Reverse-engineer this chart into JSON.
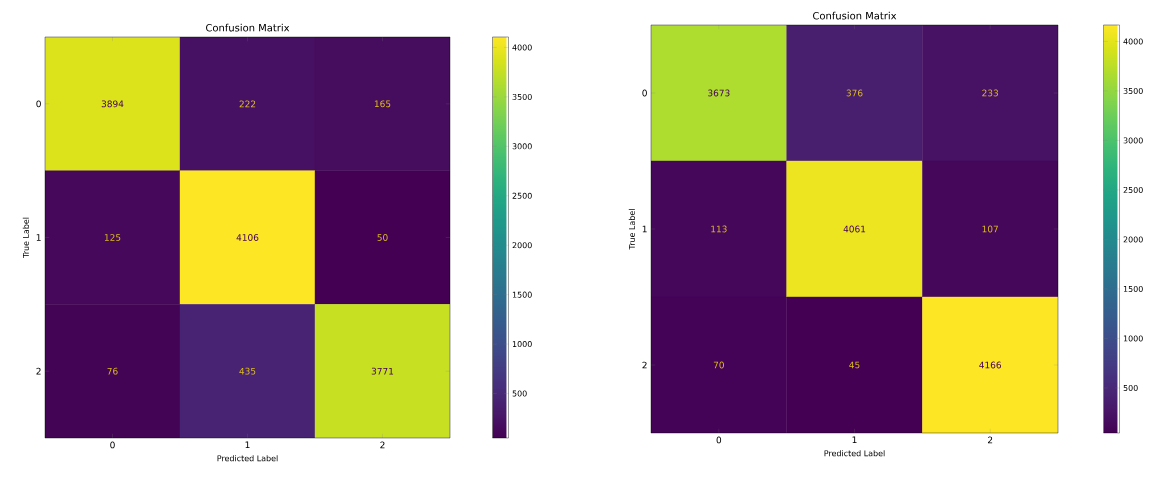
{
  "chart_data": [
    {
      "type": "heatmap",
      "title": "Confusion Matrix",
      "xlabel": "Predicted Label",
      "ylabel": "True Label",
      "categories": [
        "0",
        "1",
        "2"
      ],
      "y_categories": [
        "0",
        "1",
        "2"
      ],
      "cells": [
        [
          3894,
          222,
          165
        ],
        [
          125,
          4106,
          50
        ],
        [
          76,
          435,
          3771
        ]
      ],
      "clim": [
        50,
        4106
      ],
      "cticks": [
        500,
        1000,
        1500,
        2000,
        2500,
        3000,
        3500,
        4000
      ],
      "data_labels": true
    },
    {
      "type": "heatmap",
      "title": "Confusion Matrix",
      "xlabel": "Predicted Label",
      "ylabel": "True Label",
      "categories": [
        "0",
        "1",
        "2"
      ],
      "y_categories": [
        "0",
        "1",
        "2"
      ],
      "cells": [
        [
          3673,
          376,
          233
        ],
        [
          113,
          4061,
          107
        ],
        [
          70,
          45,
          4166
        ]
      ],
      "clim": [
        45,
        4166
      ],
      "cticks": [
        500,
        1000,
        1500,
        2000,
        2500,
        3000,
        3500,
        4000
      ],
      "data_labels": true
    }
  ]
}
